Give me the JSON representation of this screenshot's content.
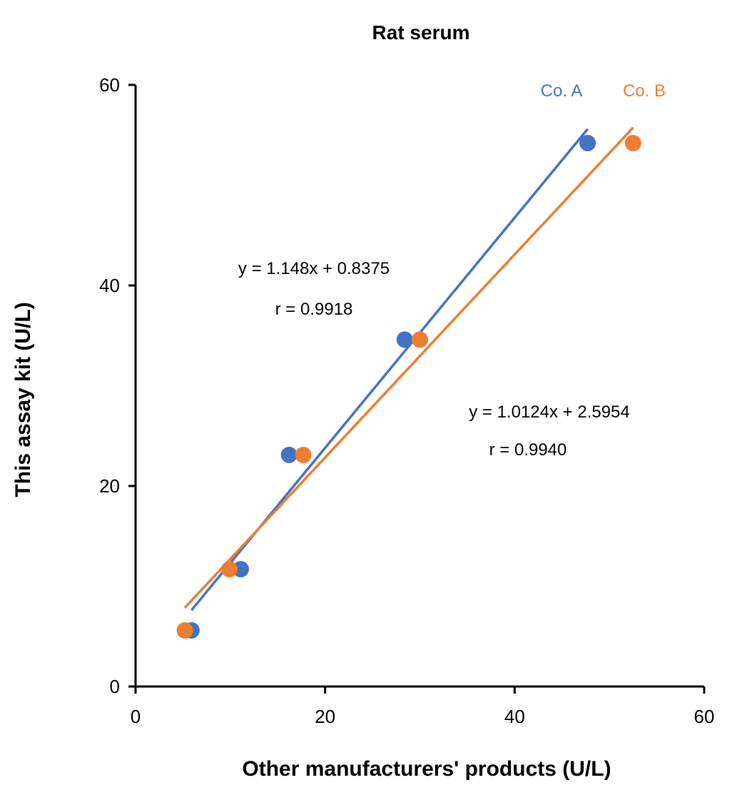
{
  "chart_data": {
    "type": "scatter",
    "title": "Rat serum",
    "xlabel": "Other manufacturers' products (U/L)",
    "ylabel": "This assay kit (U/L)",
    "xlim": [
      0,
      60
    ],
    "ylim": [
      0,
      60
    ],
    "xticks": [
      "0",
      "20",
      "40",
      "60"
    ],
    "yticks": [
      "0",
      "20",
      "40",
      "60"
    ],
    "grid": false,
    "legend": "top-right",
    "series": [
      {
        "name": "Co. A",
        "color": "#4472C4",
        "x": [
          5.9,
          11.1,
          16.2,
          28.4,
          47.7
        ],
        "y": [
          5.6,
          11.7,
          23.1,
          34.6,
          54.2
        ],
        "trendline": {
          "slope": 1.148,
          "intercept": 0.8375,
          "x_range": [
            5.9,
            47.7
          ]
        },
        "equation": "y = 1.148x + 0.8375",
        "r": "r = 0.9918"
      },
      {
        "name": "Co. B",
        "color": "#ED7D31",
        "x": [
          5.2,
          9.9,
          17.7,
          30.0,
          52.5
        ],
        "y": [
          5.6,
          11.7,
          23.1,
          34.6,
          54.2
        ],
        "trendline": {
          "slope": 1.0124,
          "intercept": 2.5954,
          "x_range": [
            5.2,
            52.5
          ]
        },
        "equation": "y = 1.0124x + 2.5954",
        "r": "r = 0.9940"
      }
    ]
  }
}
